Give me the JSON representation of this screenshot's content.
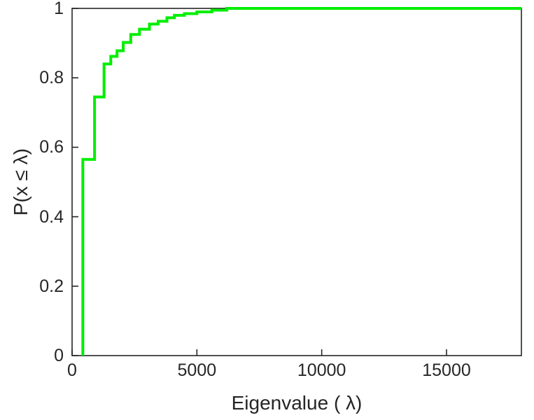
{
  "chart_data": {
    "type": "line",
    "subtype": "empirical-cdf-step",
    "title": "",
    "xlabel": "Eigenvalue ( λ)",
    "ylabel": "P(x ≤ λ)",
    "xlim": [
      0,
      18000
    ],
    "ylim": [
      0,
      1
    ],
    "xticks": [
      0,
      5000,
      10000,
      15000
    ],
    "yticks": [
      0,
      0.2,
      0.4,
      0.6,
      0.8,
      1
    ],
    "grid": "off",
    "legend": "none",
    "line_color": "#00ee00",
    "line_width": 4,
    "axis_color": "#262626",
    "start_x": 430,
    "end_x": 18000,
    "steps": [
      [
        430,
        0.565
      ],
      [
        900,
        0.745
      ],
      [
        1280,
        0.84
      ],
      [
        1550,
        0.862
      ],
      [
        1800,
        0.878
      ],
      [
        2050,
        0.902
      ],
      [
        2350,
        0.925
      ],
      [
        2700,
        0.94
      ],
      [
        3100,
        0.955
      ],
      [
        3450,
        0.963
      ],
      [
        3800,
        0.973
      ],
      [
        4100,
        0.98
      ],
      [
        4500,
        0.985
      ],
      [
        5000,
        0.99
      ],
      [
        5600,
        0.995
      ],
      [
        6200,
        1.0
      ]
    ]
  }
}
